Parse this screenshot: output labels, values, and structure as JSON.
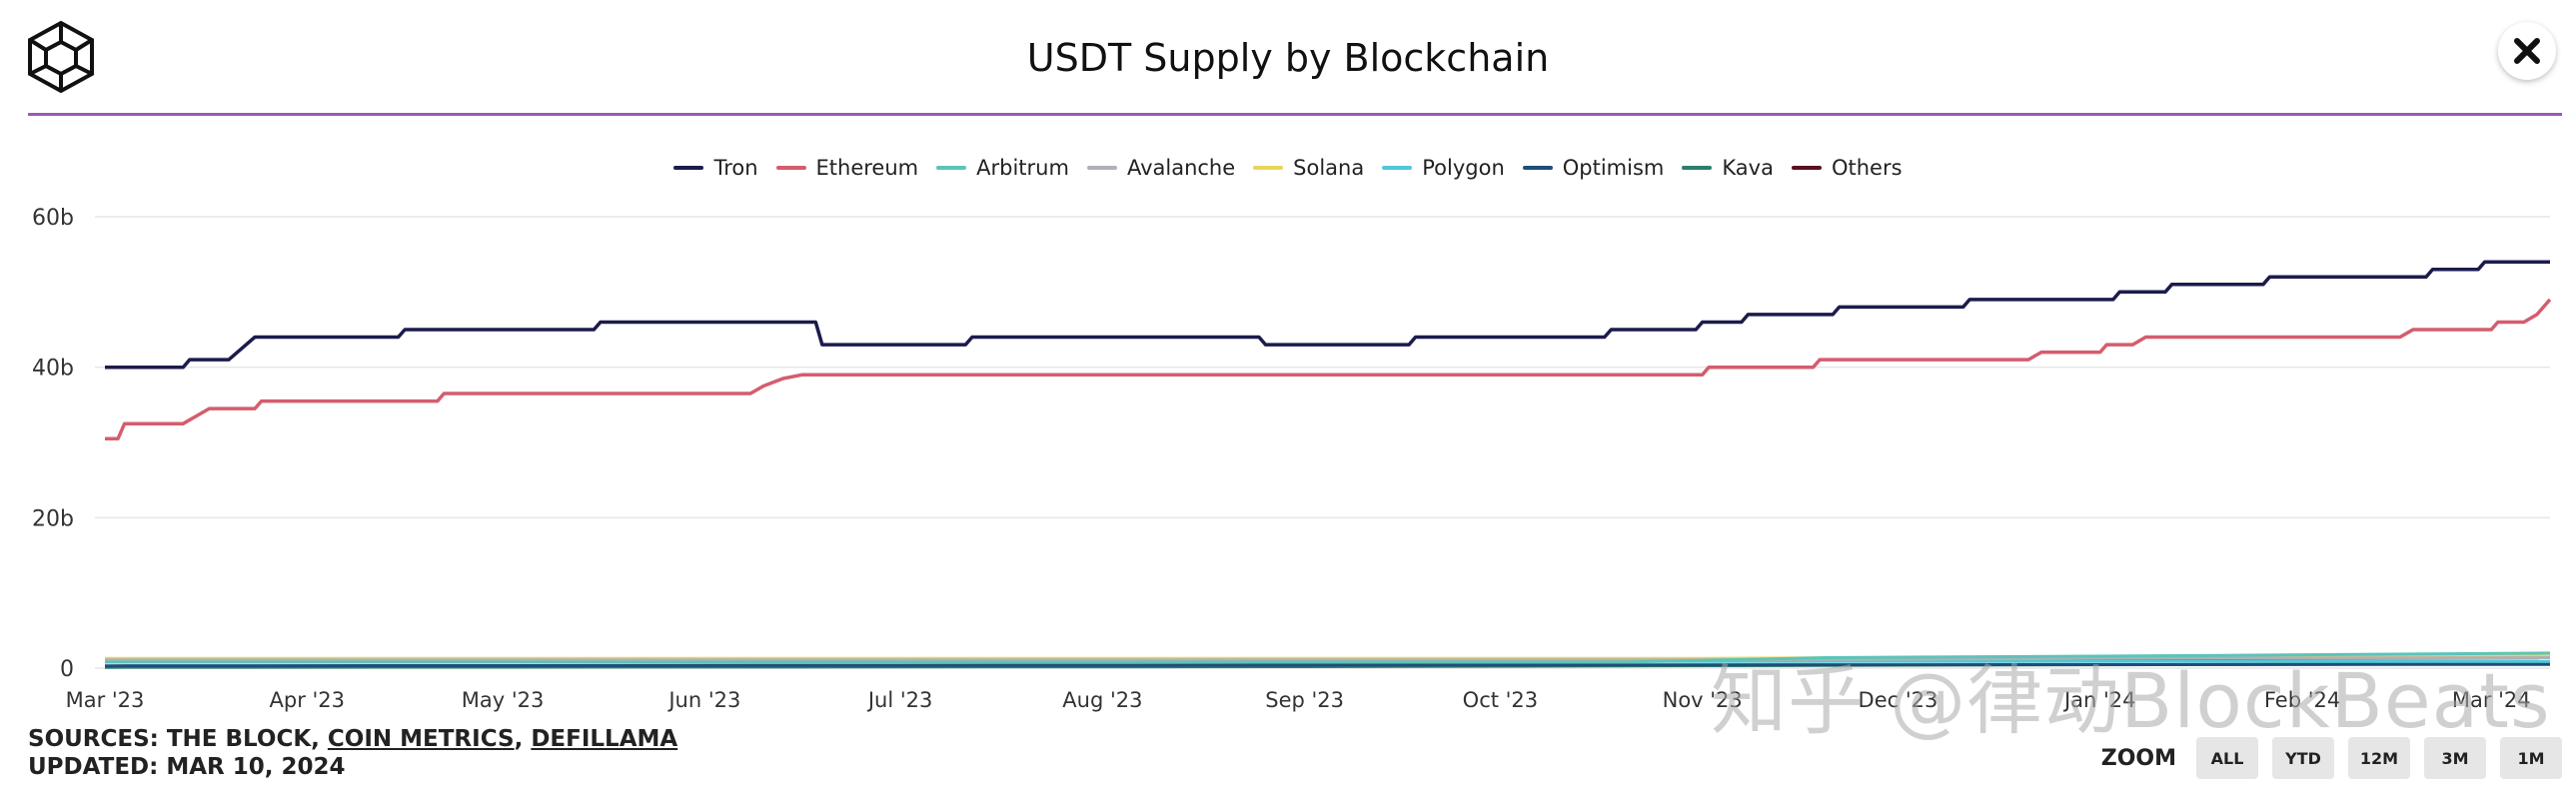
{
  "header": {
    "title": "USDT Supply by Blockchain",
    "logo_icon": "cube-logo-icon",
    "close_icon": "close-icon"
  },
  "footer": {
    "sources_prefix": "SOURCES: THE BLOCK, ",
    "source_1": "COIN METRICS",
    "separator": ", ",
    "source_2": "DEFILLAMA",
    "updated": "UPDATED: MAR 10, 2024"
  },
  "zoom": {
    "label": "ZOOM",
    "buttons": [
      "ALL",
      "YTD",
      "12M",
      "3M",
      "1M"
    ]
  },
  "watermark": "知乎 @律动BlockBeats",
  "chart_data": {
    "type": "line",
    "title": "USDT Supply by Blockchain",
    "xlabel": "",
    "ylabel": "",
    "ylim": [
      0,
      60
    ],
    "y_ticks": [
      "0",
      "20b",
      "40b",
      "60b"
    ],
    "x_ticks": [
      "Mar '23",
      "Apr '23",
      "May '23",
      "Jun '23",
      "Jul '23",
      "Aug '23",
      "Sep '23",
      "Oct '23",
      "Nov '23",
      "Dec '23",
      "Jan '24",
      "Feb '24",
      "Mar '24"
    ],
    "x_range": [
      "2023-03-01",
      "2024-03-10"
    ],
    "grid": true,
    "legend_position": "top-center",
    "series": [
      {
        "name": "Tron",
        "color": "#1c1b4d",
        "points": [
          [
            "2023-03-01",
            40
          ],
          [
            "2023-03-13",
            40
          ],
          [
            "2023-03-14",
            41
          ],
          [
            "2023-03-20",
            41
          ],
          [
            "2023-03-22",
            42.5
          ],
          [
            "2023-03-24",
            44
          ],
          [
            "2023-04-15",
            44
          ],
          [
            "2023-04-16",
            45
          ],
          [
            "2023-05-15",
            45
          ],
          [
            "2023-05-16",
            46
          ],
          [
            "2023-06-18",
            46
          ],
          [
            "2023-06-19",
            43
          ],
          [
            "2023-07-11",
            43
          ],
          [
            "2023-07-12",
            44
          ],
          [
            "2023-08-25",
            44
          ],
          [
            "2023-08-26",
            43
          ],
          [
            "2023-09-17",
            43
          ],
          [
            "2023-09-18",
            44
          ],
          [
            "2023-10-17",
            44
          ],
          [
            "2023-10-18",
            45
          ],
          [
            "2023-10-31",
            45
          ],
          [
            "2023-11-01",
            46
          ],
          [
            "2023-11-07",
            46
          ],
          [
            "2023-11-08",
            47
          ],
          [
            "2023-11-21",
            47
          ],
          [
            "2023-11-22",
            48
          ],
          [
            "2023-12-11",
            48
          ],
          [
            "2023-12-12",
            49
          ],
          [
            "2024-01-03",
            49
          ],
          [
            "2024-01-04",
            50
          ],
          [
            "2024-01-11",
            50
          ],
          [
            "2024-01-12",
            51
          ],
          [
            "2024-01-26",
            51
          ],
          [
            "2024-01-27",
            52
          ],
          [
            "2024-02-20",
            52
          ],
          [
            "2024-02-21",
            53
          ],
          [
            "2024-02-28",
            53
          ],
          [
            "2024-02-29",
            54
          ],
          [
            "2024-03-10",
            54
          ]
        ]
      },
      {
        "name": "Ethereum",
        "color": "#d45d6e",
        "points": [
          [
            "2023-03-01",
            30.5
          ],
          [
            "2023-03-03",
            30.5
          ],
          [
            "2023-03-04",
            32.5
          ],
          [
            "2023-03-13",
            32.5
          ],
          [
            "2023-03-15",
            33.5
          ],
          [
            "2023-03-17",
            34.5
          ],
          [
            "2023-03-24",
            34.5
          ],
          [
            "2023-03-25",
            35.5
          ],
          [
            "2023-04-21",
            35.5
          ],
          [
            "2023-04-22",
            36.5
          ],
          [
            "2023-06-08",
            36.5
          ],
          [
            "2023-06-10",
            37.5
          ],
          [
            "2023-06-13",
            38.5
          ],
          [
            "2023-06-16",
            39
          ],
          [
            "2023-11-01",
            39
          ],
          [
            "2023-11-02",
            40
          ],
          [
            "2023-11-18",
            40
          ],
          [
            "2023-11-19",
            41
          ],
          [
            "2023-12-21",
            41
          ],
          [
            "2023-12-23",
            42
          ],
          [
            "2024-01-01",
            42
          ],
          [
            "2024-01-02",
            43
          ],
          [
            "2024-01-06",
            43
          ],
          [
            "2024-01-08",
            44
          ],
          [
            "2024-02-16",
            44
          ],
          [
            "2024-02-18",
            45
          ],
          [
            "2024-03-01",
            45
          ],
          [
            "2024-03-02",
            46
          ],
          [
            "2024-03-06",
            46
          ],
          [
            "2024-03-08",
            47
          ],
          [
            "2024-03-10",
            49
          ]
        ]
      },
      {
        "name": "Arbitrum",
        "color": "#5bc4b8",
        "points": [
          [
            "2023-03-01",
            0.8
          ],
          [
            "2023-10-20",
            0.8
          ],
          [
            "2023-11-20",
            1.4
          ],
          [
            "2024-01-20",
            1.7
          ],
          [
            "2024-03-10",
            2.0
          ]
        ]
      },
      {
        "name": "Avalanche",
        "color": "#b0b0b8",
        "points": [
          [
            "2023-03-01",
            1.1
          ],
          [
            "2023-11-01",
            1.1
          ],
          [
            "2024-01-01",
            1.3
          ],
          [
            "2024-03-10",
            1.4
          ]
        ]
      },
      {
        "name": "Solana",
        "color": "#e8d65a",
        "points": [
          [
            "2023-03-01",
            1.3
          ],
          [
            "2023-11-01",
            1.3
          ],
          [
            "2024-01-01",
            1.5
          ],
          [
            "2024-03-10",
            1.6
          ]
        ]
      },
      {
        "name": "Polygon",
        "color": "#4fc8d8",
        "points": [
          [
            "2023-03-01",
            0.9
          ],
          [
            "2024-03-10",
            0.9
          ]
        ]
      },
      {
        "name": "Optimism",
        "color": "#1f4e79",
        "points": [
          [
            "2023-03-01",
            0.3
          ],
          [
            "2024-03-10",
            0.5
          ]
        ]
      },
      {
        "name": "Kava",
        "color": "#2e7d6e",
        "points": [
          [
            "2023-03-01",
            0.1
          ],
          [
            "2023-09-01",
            0.2
          ],
          [
            "2024-03-10",
            0.6
          ]
        ]
      },
      {
        "name": "Others",
        "color": "#5a1020",
        "points": [
          [
            "2023-03-01",
            1.2
          ],
          [
            "2024-03-10",
            0.9
          ]
        ]
      }
    ]
  }
}
